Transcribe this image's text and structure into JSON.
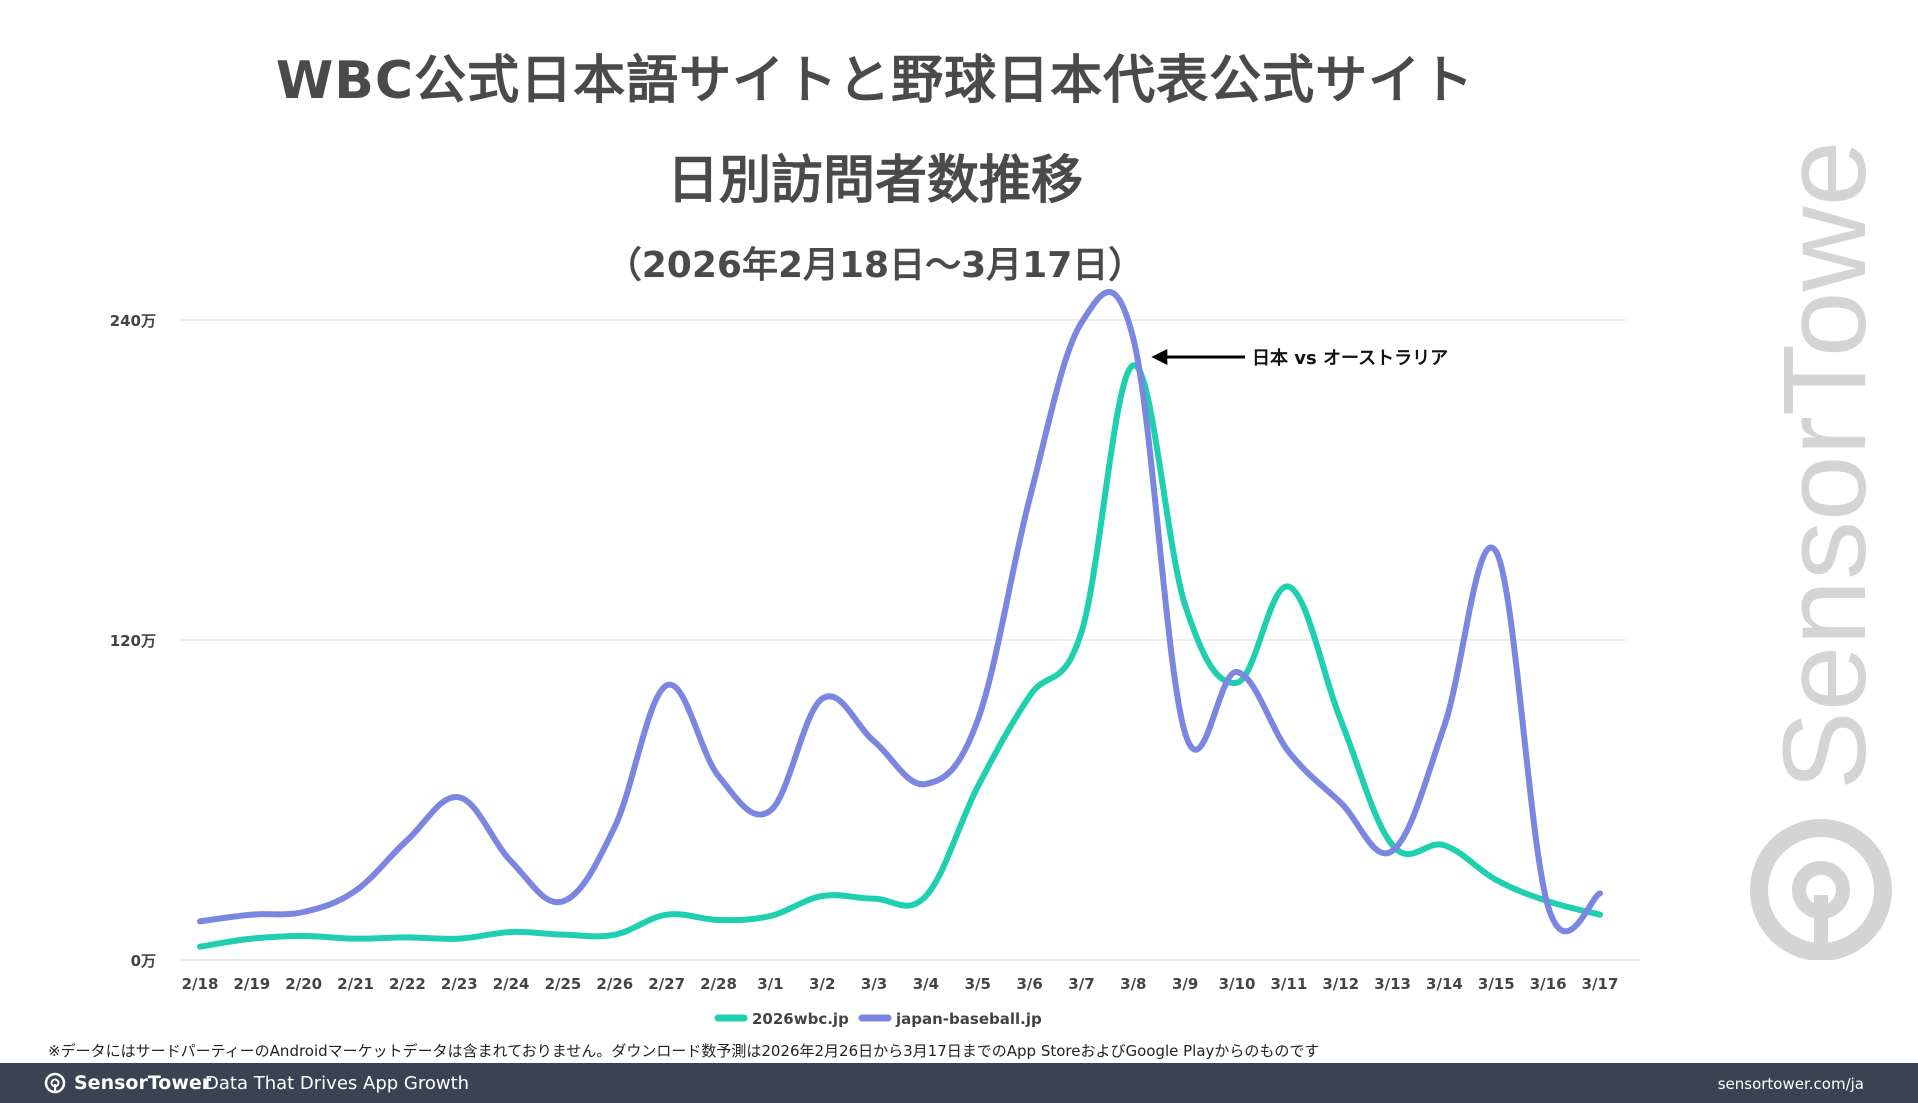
{
  "title_line1": "WBC公式日本語サイトと野球日本代表公式サイト",
  "title_line2": "日別訪問者数推移",
  "subtitle": "（2026年2月18日〜3月17日）",
  "annotation": "日本 vs オーストラリア",
  "footnote": "※データにはサードパーティーのAndroidマーケットデータは含まれておりません。ダウンロード数予測は2026年2月26日から3月17日までのApp StoreおよびGoogle Playからのものです",
  "footer": {
    "brand": "SensorTower",
    "tagline": "Data That Drives App Growth",
    "url": "sensortower.com/ja"
  },
  "watermark_text": "SensorTower",
  "colors": {
    "series1": "#1ecfb0",
    "series2": "#7b86e0",
    "grid": "#dddddd",
    "text": "#4a4a4a",
    "footer_bg": "#3b4252"
  },
  "chart_data": {
    "type": "line",
    "title": "WBC公式日本語サイトと野球日本代表公式サイト 日別訪問者数推移",
    "subtitle": "（2026年2月18日〜3月17日）",
    "xlabel": "",
    "ylabel": "",
    "ylim": [
      0,
      2400000
    ],
    "yticks": [
      {
        "value": 0,
        "label": "0万"
      },
      {
        "value": 1200000,
        "label": "120万"
      },
      {
        "value": 2400000,
        "label": "240万"
      }
    ],
    "grid": true,
    "legend": "bottom",
    "x": [
      "2/18",
      "2/19",
      "2/20",
      "2/21",
      "2/22",
      "2/23",
      "2/24",
      "2/25",
      "2/26",
      "2/27",
      "2/28",
      "3/1",
      "3/2",
      "3/3",
      "3/4",
      "3/5",
      "3/6",
      "3/7",
      "3/8",
      "3/9",
      "3/10",
      "3/11",
      "3/12",
      "3/13",
      "3/14",
      "3/15",
      "3/16",
      "3/17"
    ],
    "series": [
      {
        "name": "2026wbc.jp",
        "color": "#1ecfb0",
        "values": [
          50000,
          80000,
          90000,
          80000,
          85000,
          80000,
          105000,
          95000,
          95000,
          170000,
          150000,
          165000,
          240000,
          230000,
          240000,
          650000,
          990000,
          1230000,
          2230000,
          1330000,
          1040000,
          1400000,
          900000,
          430000,
          430000,
          300000,
          220000,
          170000
        ]
      },
      {
        "name": "japan-baseball.jp",
        "color": "#7b86e0",
        "values": [
          145000,
          170000,
          180000,
          260000,
          450000,
          610000,
          370000,
          220000,
          500000,
          1030000,
          690000,
          560000,
          980000,
          820000,
          660000,
          900000,
          1730000,
          2390000,
          2330000,
          850000,
          1080000,
          780000,
          590000,
          410000,
          880000,
          1530000,
          200000,
          250000
        ]
      }
    ],
    "annotations": [
      {
        "x": "3/8",
        "text": "日本 vs オーストラリア"
      }
    ]
  }
}
